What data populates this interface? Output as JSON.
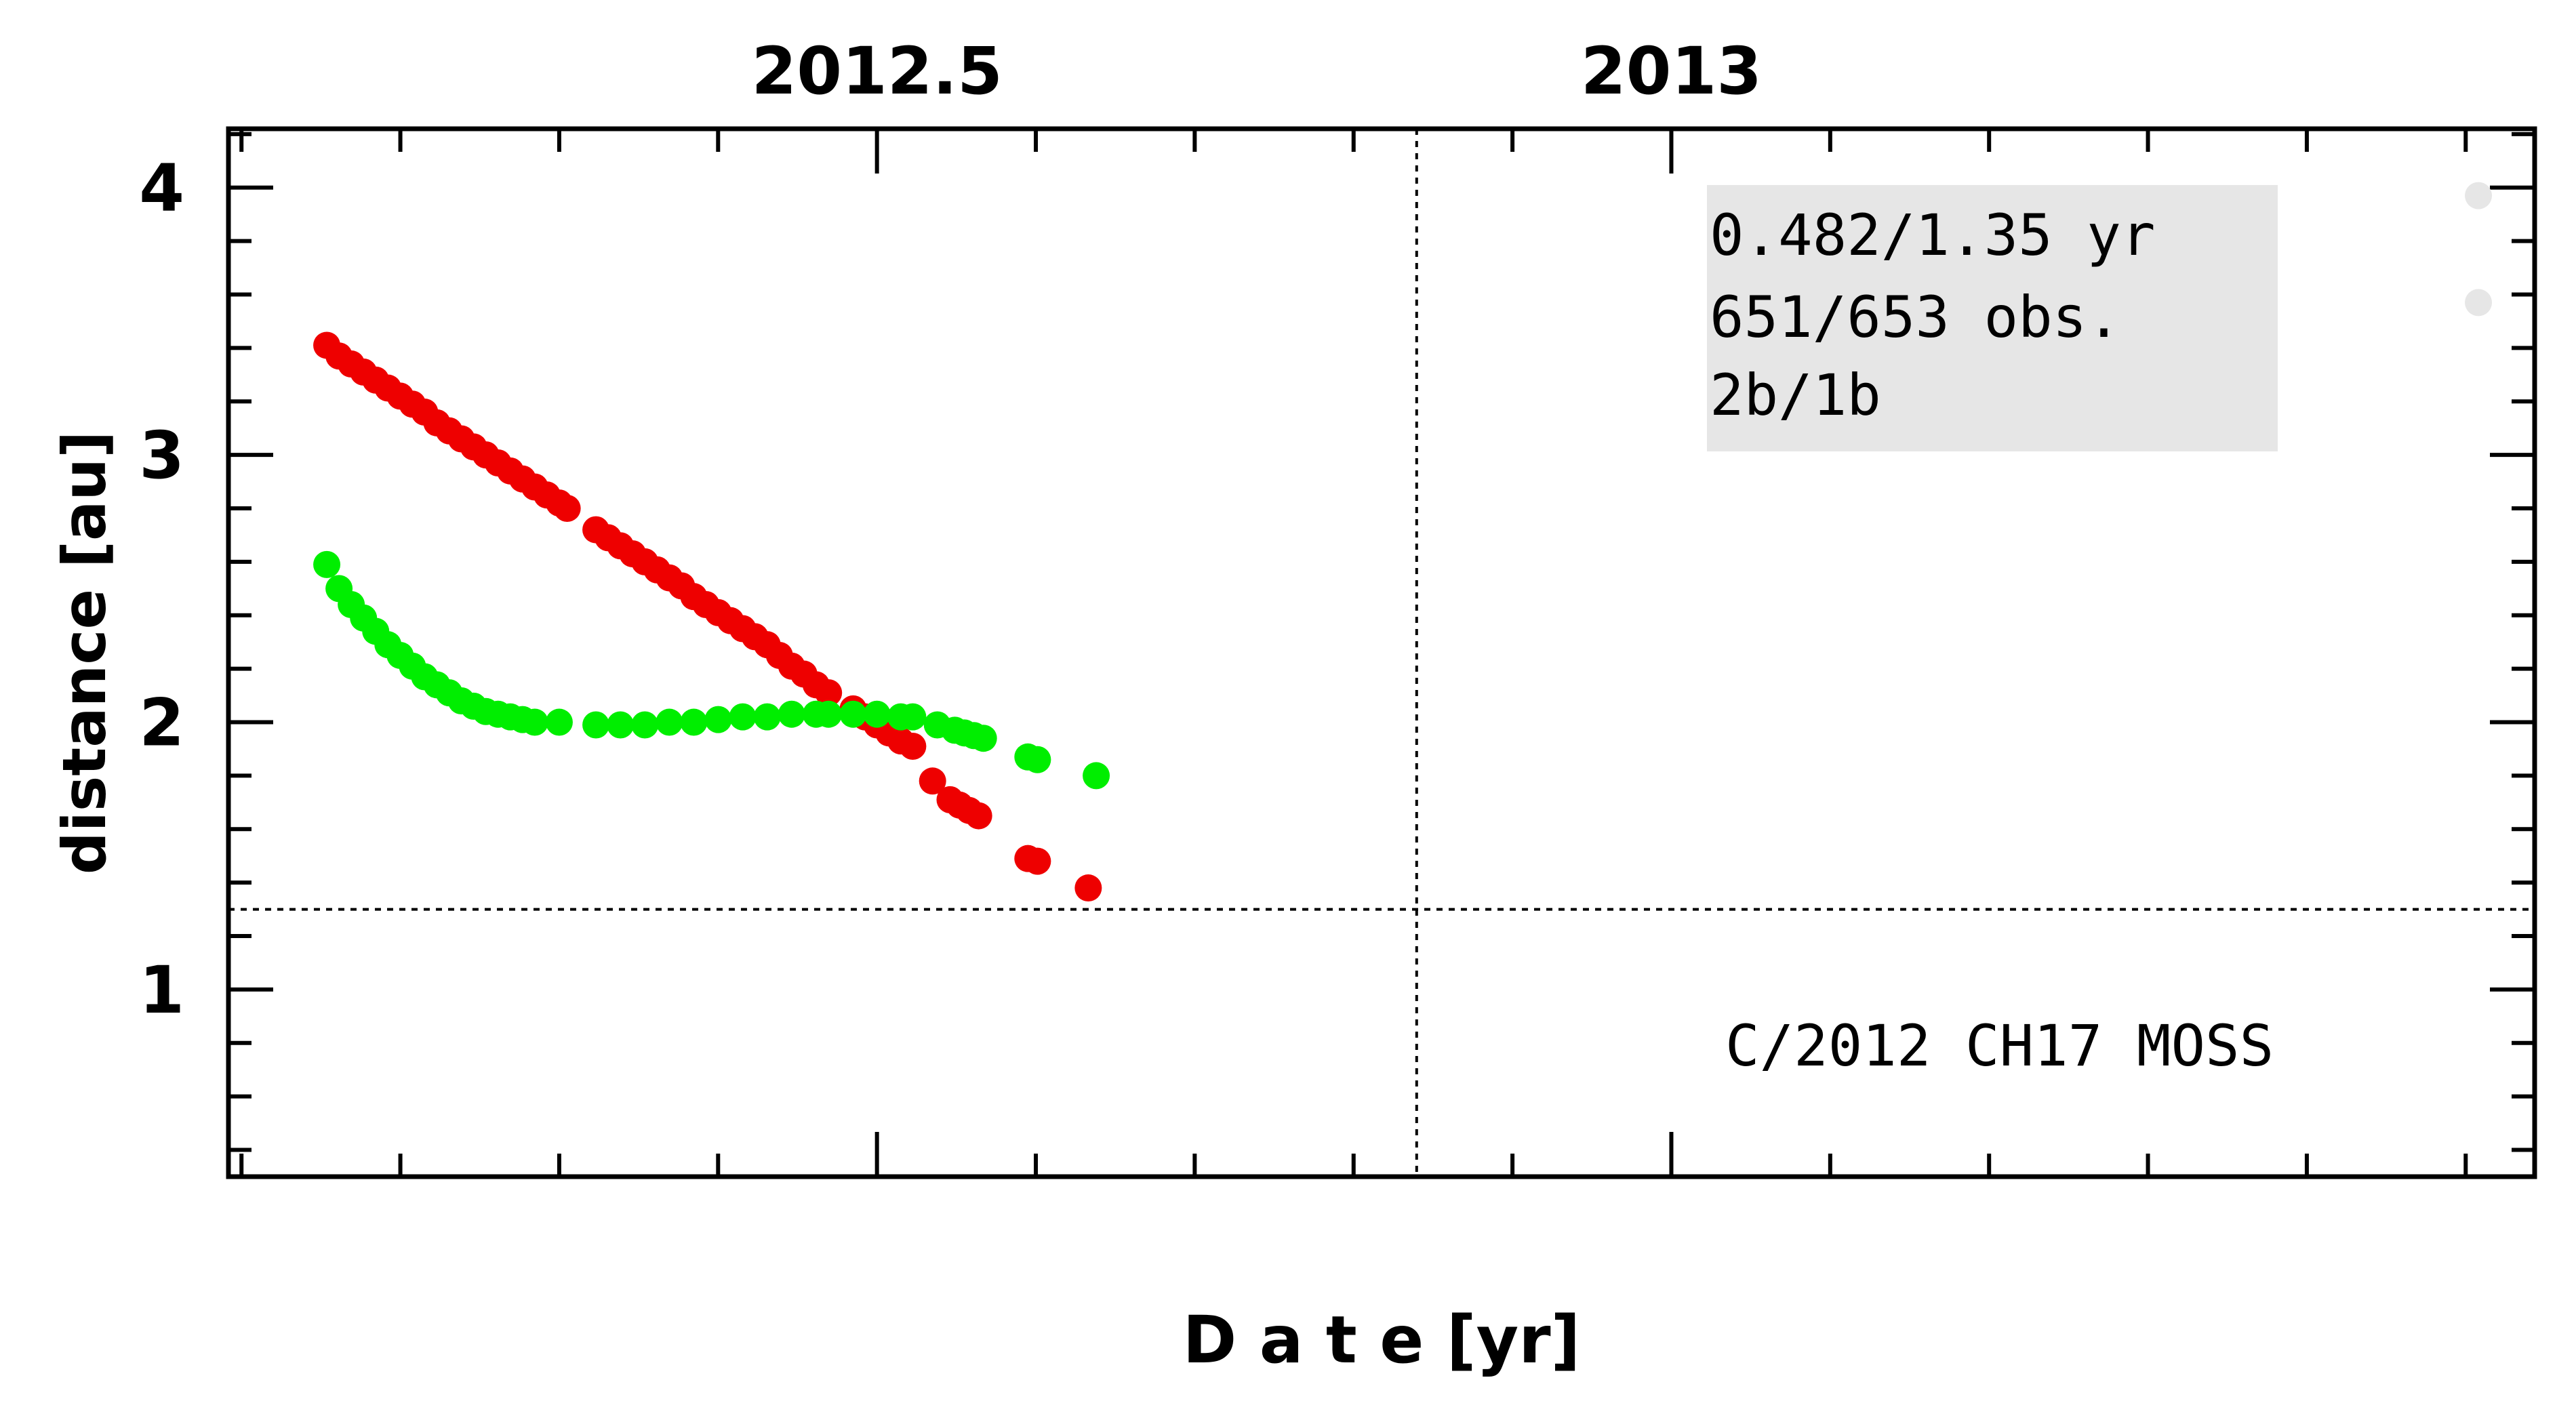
{
  "chart_data": {
    "type": "scatter",
    "xlabel": "D a t e [yr]",
    "ylabel": "distance [au]",
    "xlim": [
      2012.0918,
      2013.5434
    ],
    "ylim": [
      0.3,
      4.22
    ],
    "x_ticks": [
      2012.5,
      2013
    ],
    "x_tick_labels": [
      "2012.5",
      "2013"
    ],
    "y_ticks": [
      1,
      2,
      3,
      4
    ],
    "y_tick_labels": [
      "1",
      "2",
      "3",
      "4"
    ],
    "reference_lines": {
      "vertical_x": 2012.8397,
      "horizontal_y": 1.3
    },
    "info_box": {
      "lines": [
        "0.482/1.35 yr",
        "651/653 obs.",
        "2b/1b"
      ],
      "background": "#e6e6e6"
    },
    "object_label": "C/2012 CH17 MOSS",
    "colors": {
      "red_series": "#ee0000",
      "green_series": "#00ee00",
      "legend_dots": "#e6e6e6",
      "axes": "#000000"
    },
    "series": [
      {
        "color": "#ee0000",
        "points": [
          [
            2012.1537,
            3.41
          ],
          [
            2012.1614,
            3.37
          ],
          [
            2012.1691,
            3.34
          ],
          [
            2012.1768,
            3.31
          ],
          [
            2012.1845,
            3.28
          ],
          [
            2012.1922,
            3.25
          ],
          [
            2012.1999,
            3.22
          ],
          [
            2012.2076,
            3.19
          ],
          [
            2012.2153,
            3.16
          ],
          [
            2012.223,
            3.12
          ],
          [
            2012.2307,
            3.09
          ],
          [
            2012.2384,
            3.06
          ],
          [
            2012.2461,
            3.03
          ],
          [
            2012.2538,
            3.0
          ],
          [
            2012.2615,
            2.97
          ],
          [
            2012.2692,
            2.94
          ],
          [
            2012.2769,
            2.91
          ],
          [
            2012.2846,
            2.88
          ],
          [
            2012.2923,
            2.85
          ],
          [
            2012.3,
            2.82
          ],
          [
            2012.305,
            2.8
          ],
          [
            2012.3231,
            2.72
          ],
          [
            2012.3308,
            2.69
          ],
          [
            2012.3385,
            2.66
          ],
          [
            2012.3462,
            2.63
          ],
          [
            2012.3539,
            2.6
          ],
          [
            2012.3616,
            2.57
          ],
          [
            2012.3693,
            2.54
          ],
          [
            2012.377,
            2.51
          ],
          [
            2012.3847,
            2.47
          ],
          [
            2012.3924,
            2.44
          ],
          [
            2012.4001,
            2.41
          ],
          [
            2012.4078,
            2.38
          ],
          [
            2012.4155,
            2.35
          ],
          [
            2012.4232,
            2.32
          ],
          [
            2012.4309,
            2.29
          ],
          [
            2012.4386,
            2.25
          ],
          [
            2012.4463,
            2.21
          ],
          [
            2012.454,
            2.18
          ],
          [
            2012.4617,
            2.14
          ],
          [
            2012.4695,
            2.11
          ],
          [
            2012.485,
            2.05
          ],
          [
            2012.4925,
            2.02
          ],
          [
            2012.5,
            1.99
          ],
          [
            2012.5075,
            1.96
          ],
          [
            2012.515,
            1.93
          ],
          [
            2012.5225,
            1.91
          ],
          [
            2012.535,
            1.78
          ],
          [
            2012.546,
            1.71
          ],
          [
            2012.552,
            1.69
          ],
          [
            2012.558,
            1.67
          ],
          [
            2012.564,
            1.65
          ],
          [
            2012.595,
            1.49
          ],
          [
            2012.601,
            1.48
          ],
          [
            2012.633,
            1.38
          ]
        ]
      },
      {
        "color": "#00ee00",
        "points": [
          [
            2012.1537,
            2.59
          ],
          [
            2012.1614,
            2.5
          ],
          [
            2012.1691,
            2.44
          ],
          [
            2012.1768,
            2.39
          ],
          [
            2012.1845,
            2.34
          ],
          [
            2012.1922,
            2.29
          ],
          [
            2012.1999,
            2.25
          ],
          [
            2012.2076,
            2.21
          ],
          [
            2012.2153,
            2.17
          ],
          [
            2012.223,
            2.14
          ],
          [
            2012.2307,
            2.11
          ],
          [
            2012.2384,
            2.08
          ],
          [
            2012.2461,
            2.06
          ],
          [
            2012.2538,
            2.04
          ],
          [
            2012.2615,
            2.03
          ],
          [
            2012.2692,
            2.02
          ],
          [
            2012.2769,
            2.01
          ],
          [
            2012.2846,
            2.0
          ],
          [
            2012.3,
            2.0
          ],
          [
            2012.3231,
            1.99
          ],
          [
            2012.3385,
            1.99
          ],
          [
            2012.3539,
            1.99
          ],
          [
            2012.3693,
            2.0
          ],
          [
            2012.3847,
            2.0
          ],
          [
            2012.4001,
            2.01
          ],
          [
            2012.4155,
            2.02
          ],
          [
            2012.4309,
            2.02
          ],
          [
            2012.4463,
            2.03
          ],
          [
            2012.4617,
            2.03
          ],
          [
            2012.4695,
            2.03
          ],
          [
            2012.485,
            2.03
          ],
          [
            2012.5,
            2.03
          ],
          [
            2012.515,
            2.02
          ],
          [
            2012.5225,
            2.02
          ],
          [
            2012.538,
            1.99
          ],
          [
            2012.549,
            1.97
          ],
          [
            2012.555,
            1.96
          ],
          [
            2012.561,
            1.95
          ],
          [
            2012.567,
            1.94
          ],
          [
            2012.595,
            1.87
          ],
          [
            2012.601,
            1.86
          ],
          [
            2012.638,
            1.8
          ]
        ]
      },
      {
        "color": "#e6e6e6",
        "points": [
          [
            2013.508,
            3.97
          ],
          [
            2013.508,
            3.57
          ]
        ]
      }
    ]
  }
}
